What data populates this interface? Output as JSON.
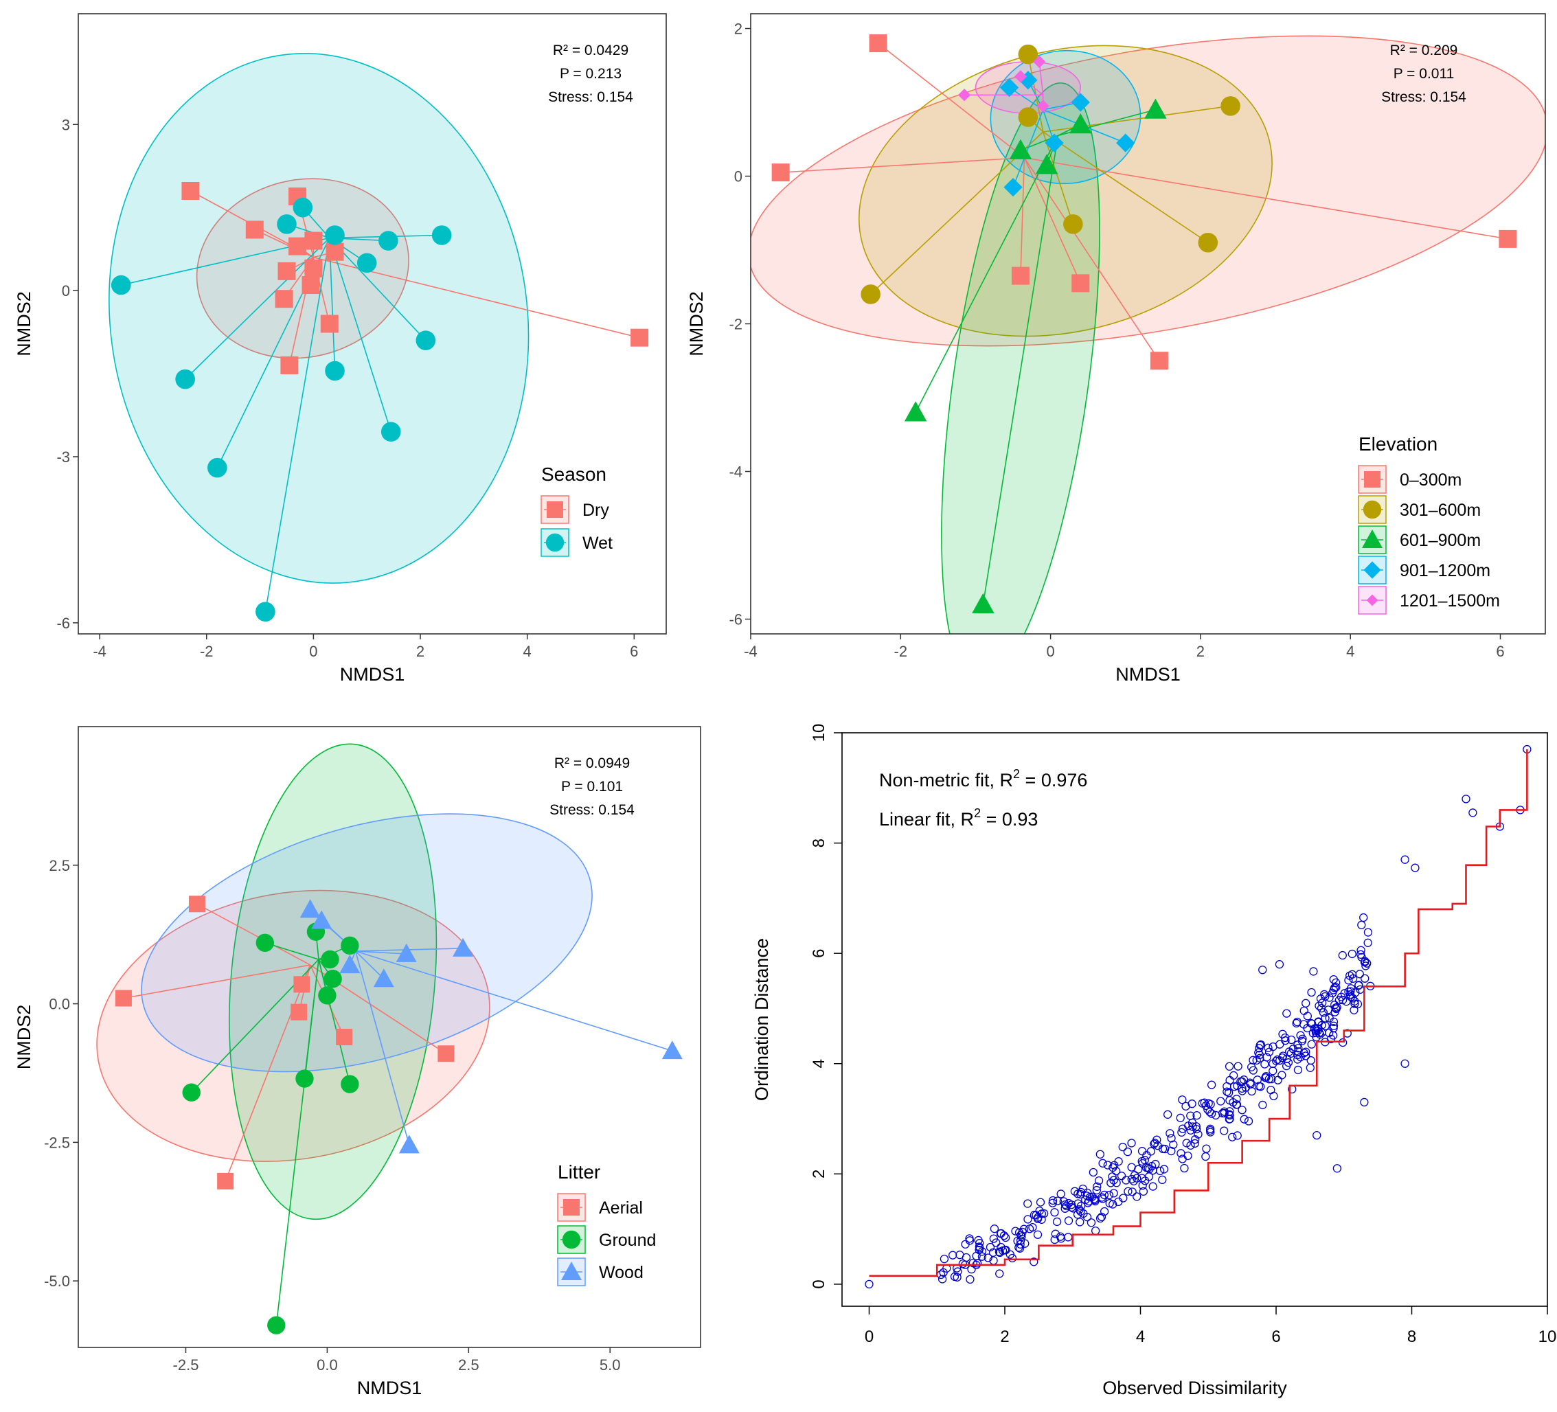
{
  "chart_data": [
    {
      "type": "scatter",
      "id": "season",
      "xlabel": "NMDS1",
      "ylabel": "NMDS2",
      "xlim": [
        -4.4,
        6.6
      ],
      "ylim": [
        -6.2,
        5.0
      ],
      "xticks": [
        -4,
        -2,
        0,
        2,
        4,
        6
      ],
      "yticks": [
        3,
        0,
        -3,
        -6
      ],
      "stats": [
        "R² = 0.0429",
        "P = 0.213",
        "Stress: 0.154"
      ],
      "legend_title": "Season",
      "legend_position": "bottom-right",
      "series": [
        {
          "name": "Dry",
          "color": "#f8766d",
          "shape": "square",
          "centroid": [
            0.0,
            0.6
          ],
          "ellipse": {
            "cx": -0.2,
            "cy": 0.4,
            "rx": 2.0,
            "ry": 1.6,
            "angle": -14
          },
          "points": [
            [
              -2.3,
              1.8
            ],
            [
              -1.1,
              1.1
            ],
            [
              -0.3,
              1.7
            ],
            [
              -0.3,
              0.8
            ],
            [
              0.0,
              0.9
            ],
            [
              0.4,
              0.7
            ],
            [
              0.0,
              0.4
            ],
            [
              -0.5,
              0.35
            ],
            [
              -0.05,
              0.1
            ],
            [
              -0.55,
              -0.15
            ],
            [
              0.3,
              -0.6
            ],
            [
              -0.45,
              -1.35
            ],
            [
              6.1,
              -0.85
            ]
          ]
        },
        {
          "name": "Wet",
          "color": "#00bfc4",
          "shape": "circle",
          "centroid": [
            0.3,
            0.95
          ],
          "ellipse": {
            "cx": 0.1,
            "cy": -0.5,
            "rx": 3.9,
            "ry": 4.8,
            "angle": -8
          },
          "points": [
            [
              -3.6,
              0.1
            ],
            [
              -2.4,
              -1.6
            ],
            [
              -1.8,
              -3.2
            ],
            [
              -0.9,
              -5.8
            ],
            [
              -0.5,
              1.2
            ],
            [
              -0.2,
              1.5
            ],
            [
              0.4,
              1.0
            ],
            [
              1.0,
              0.5
            ],
            [
              1.4,
              0.9
            ],
            [
              2.4,
              1.0
            ],
            [
              2.1,
              -0.9
            ],
            [
              0.4,
              -1.45
            ],
            [
              1.45,
              -2.55
            ]
          ]
        }
      ]
    },
    {
      "type": "scatter",
      "id": "elevation",
      "xlabel": "NMDS1",
      "ylabel": "NMDS2",
      "xlim": [
        -4.0,
        6.6
      ],
      "ylim": [
        -6.2,
        2.2
      ],
      "xticks": [
        -4,
        -2,
        0,
        2,
        4,
        6
      ],
      "yticks": [
        2,
        0,
        -2,
        -4,
        -6
      ],
      "stats": [
        "R² = 0.209",
        "P = 0.011",
        "Stress: 0.154"
      ],
      "legend_title": "Elevation",
      "legend_position": "bottom-right",
      "series": [
        {
          "name": "0–300m",
          "color": "#f8766d",
          "shape": "square",
          "centroid": [
            -0.35,
            0.25
          ],
          "ellipse": {
            "cx": 1.3,
            "cy": -0.2,
            "rx": 5.4,
            "ry": 1.9,
            "angle": -10
          },
          "points": [
            [
              -2.3,
              1.8
            ],
            [
              -3.6,
              0.05
            ],
            [
              -0.4,
              -1.35
            ],
            [
              0.4,
              -1.45
            ],
            [
              1.45,
              -2.5
            ],
            [
              6.1,
              -0.85
            ]
          ]
        },
        {
          "name": "301–600m",
          "color": "#b79f00",
          "shape": "circle",
          "centroid": [
            -0.1,
            0.6
          ],
          "ellipse": {
            "cx": 0.2,
            "cy": -0.2,
            "rx": 2.8,
            "ry": 1.9,
            "angle": -14
          },
          "points": [
            [
              -0.3,
              1.65
            ],
            [
              -0.3,
              0.8
            ],
            [
              0.3,
              -0.65
            ],
            [
              2.4,
              0.95
            ],
            [
              2.1,
              -0.9
            ],
            [
              -2.4,
              -1.6
            ]
          ]
        },
        {
          "name": "601–900m",
          "color": "#00ba38",
          "shape": "triangle",
          "centroid": [
            0.1,
            0.55
          ],
          "ellipse": {
            "cx": -0.4,
            "cy": -2.8,
            "rx": 0.9,
            "ry": 4.1,
            "angle": 8
          },
          "points": [
            [
              -0.4,
              0.35
            ],
            [
              -0.05,
              0.15
            ],
            [
              0.4,
              0.7
            ],
            [
              1.4,
              0.9
            ],
            [
              -1.8,
              -3.2
            ],
            [
              -0.9,
              -5.8
            ]
          ]
        },
        {
          "name": "901–1200m",
          "color": "#00b4f0",
          "shape": "diamond",
          "centroid": [
            -0.1,
            0.9
          ],
          "ellipse": {
            "cx": 0.2,
            "cy": 0.8,
            "rx": 1.0,
            "ry": 0.9,
            "angle": -5
          },
          "points": [
            [
              -0.55,
              1.2
            ],
            [
              -0.3,
              1.3
            ],
            [
              0.4,
              1.0
            ],
            [
              1.0,
              0.45
            ],
            [
              0.05,
              0.45
            ],
            [
              -0.5,
              -0.15
            ]
          ]
        },
        {
          "name": "1201–1500m",
          "color": "#f564e3",
          "shape": "diamond-small",
          "centroid": [
            -0.1,
            1.1
          ],
          "ellipse": {
            "cx": -0.3,
            "cy": 1.2,
            "rx": 0.7,
            "ry": 0.35,
            "angle": 0
          },
          "points": [
            [
              -1.15,
              1.1
            ],
            [
              -0.4,
              1.35
            ],
            [
              -0.15,
              1.55
            ],
            [
              -0.1,
              0.95
            ]
          ]
        }
      ]
    },
    {
      "type": "scatter",
      "id": "litter",
      "xlabel": "NMDS1",
      "ylabel": "NMDS2",
      "xlim": [
        -4.4,
        6.6
      ],
      "ylim": [
        -6.2,
        5.0
      ],
      "xticks": [
        -2.5,
        0.0,
        2.5,
        5.0
      ],
      "xtick_labels": [
        "-2.5",
        "0.0",
        "2.5",
        "5.0"
      ],
      "yticks": [
        2.5,
        0.0,
        -2.5,
        -5.0
      ],
      "ytick_labels": [
        "2.5",
        "0.0",
        "-2.5",
        "-5.0"
      ],
      "stats": [
        "R² = 0.0949",
        "P = 0.101",
        "Stress: 0.154"
      ],
      "legend_title": "Litter",
      "legend_position": "bottom-right",
      "series": [
        {
          "name": "Aerial",
          "color": "#f8766d",
          "shape": "square",
          "centroid": [
            -0.3,
            0.7
          ],
          "ellipse": {
            "cx": -0.6,
            "cy": -0.4,
            "rx": 3.5,
            "ry": 2.4,
            "angle": -10
          },
          "points": [
            [
              -2.3,
              1.8
            ],
            [
              -3.6,
              0.1
            ],
            [
              -0.45,
              0.35
            ],
            [
              -0.5,
              -0.15
            ],
            [
              0.3,
              -0.6
            ],
            [
              2.1,
              -0.9
            ],
            [
              -1.8,
              -3.2
            ]
          ]
        },
        {
          "name": "Ground",
          "color": "#00ba38",
          "shape": "circle",
          "centroid": [
            -0.15,
            0.8
          ],
          "ellipse": {
            "cx": 0.1,
            "cy": 0.4,
            "rx": 1.8,
            "ry": 4.3,
            "angle": 5
          },
          "points": [
            [
              -1.1,
              1.1
            ],
            [
              -0.2,
              1.3
            ],
            [
              0.4,
              1.05
            ],
            [
              0.05,
              0.8
            ],
            [
              0.1,
              0.45
            ],
            [
              0.0,
              0.15
            ],
            [
              -0.4,
              -1.35
            ],
            [
              0.4,
              -1.45
            ],
            [
              -2.4,
              -1.6
            ],
            [
              -0.9,
              -5.8
            ]
          ]
        },
        {
          "name": "Wood",
          "color": "#619cff",
          "shape": "triangle",
          "centroid": [
            0.5,
            0.95
          ],
          "ellipse": {
            "cx": 0.7,
            "cy": 1.1,
            "rx": 4.1,
            "ry": 2.1,
            "angle": -16
          },
          "points": [
            [
              -0.3,
              1.7
            ],
            [
              -0.1,
              1.5
            ],
            [
              0.4,
              0.7
            ],
            [
              1.0,
              0.45
            ],
            [
              1.4,
              0.9
            ],
            [
              2.4,
              1.0
            ],
            [
              6.1,
              -0.85
            ],
            [
              1.45,
              -2.55
            ]
          ]
        }
      ]
    },
    {
      "type": "scatter",
      "id": "shepard",
      "xlabel": "Observed Dissimilarity",
      "ylabel": "Ordination Distance",
      "xlim": [
        -0.4,
        10.0
      ],
      "ylim": [
        -0.4,
        10.0
      ],
      "xticks": [
        0,
        2,
        4,
        6,
        8,
        10
      ],
      "yticks": [
        0,
        2,
        4,
        6,
        8,
        10
      ],
      "annotations": [
        "Non-metric fit, R",
        "2",
        " = 0.976",
        "Linear fit, R",
        "2",
        " = 0.93"
      ],
      "point_color": "#0000cd",
      "step_line_color": "#e41a1c",
      "generated_points": {
        "count": 430,
        "model": "0.08*x^2 + 0.2*x",
        "scatter_sd": 0.6
      },
      "extra_points": [
        [
          0,
          0
        ],
        [
          9.7,
          9.7
        ],
        [
          9.6,
          8.6
        ],
        [
          8.8,
          8.8
        ],
        [
          8.9,
          8.55
        ],
        [
          9.3,
          8.3
        ],
        [
          7.9,
          7.7
        ],
        [
          8.05,
          7.55
        ],
        [
          7.9,
          4.0
        ],
        [
          7.3,
          3.3
        ],
        [
          6.9,
          2.1
        ],
        [
          6.6,
          2.7
        ],
        [
          5.8,
          5.7
        ],
        [
          6.05,
          5.8
        ]
      ],
      "step_x": [
        0.0,
        1.0,
        2.0,
        2.5,
        3.0,
        3.6,
        4.0,
        4.5,
        5.0,
        5.5,
        5.9,
        6.2,
        6.6,
        7.0,
        7.3,
        7.9,
        8.1,
        8.6,
        8.8,
        9.1,
        9.3,
        9.6,
        9.7
      ],
      "step_y": [
        0.15,
        0.35,
        0.45,
        0.7,
        0.9,
        1.05,
        1.3,
        1.7,
        2.2,
        2.6,
        3.0,
        3.6,
        4.4,
        4.6,
        5.4,
        6.0,
        6.8,
        6.9,
        7.6,
        8.3,
        8.6,
        8.6,
        9.7
      ]
    }
  ]
}
